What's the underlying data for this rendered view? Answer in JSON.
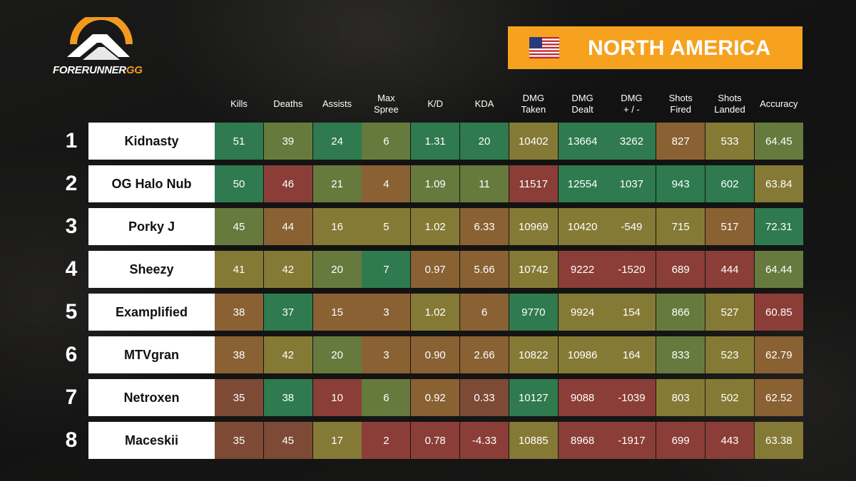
{
  "brand": {
    "logo_text_main": "FORERUNNER",
    "logo_text_suffix": "GG",
    "accent_color": "#f7a21f"
  },
  "region": {
    "title": "NORTH AMERICA",
    "flag_icon": "us-flag-icon"
  },
  "columns": [
    "Kills",
    "Deaths",
    "Assists",
    "Max\nSpree",
    "K/D",
    "KDA",
    "DMG\nTaken",
    "DMG\nDealt",
    "DMG\n+ / -",
    "Shots\nFired",
    "Shots\nLanded",
    "Accuracy"
  ],
  "colors": {
    "green": "#2f7a4f",
    "green_light": "#4d7f47",
    "olive": "#667a3e",
    "yellow": "#857a35",
    "orange": "#8a6133",
    "red": "#8a3e37",
    "red_mid": "#7d4a35"
  },
  "rows": [
    {
      "rank": "1",
      "name": "Kidnasty",
      "values": [
        "51",
        "39",
        "24",
        "6",
        "1.31",
        "20",
        "10402",
        "13664",
        "3262",
        "827",
        "533",
        "64.45"
      ],
      "colors": [
        "green",
        "olive",
        "green",
        "olive",
        "green",
        "green",
        "yellow",
        "green",
        "green",
        "orange",
        "yellow",
        "olive"
      ]
    },
    {
      "rank": "2",
      "name": "OG Halo Nub",
      "values": [
        "50",
        "46",
        "21",
        "4",
        "1.09",
        "11",
        "11517",
        "12554",
        "1037",
        "943",
        "602",
        "63.84"
      ],
      "colors": [
        "green",
        "red",
        "olive",
        "orange",
        "olive",
        "olive",
        "red",
        "green",
        "green",
        "green",
        "green",
        "yellow"
      ]
    },
    {
      "rank": "3",
      "name": "Porky J",
      "values": [
        "45",
        "44",
        "16",
        "5",
        "1.02",
        "6.33",
        "10969",
        "10420",
        "-549",
        "715",
        "517",
        "72.31"
      ],
      "colors": [
        "olive",
        "orange",
        "yellow",
        "yellow",
        "yellow",
        "orange",
        "yellow",
        "yellow",
        "yellow",
        "yellow",
        "orange",
        "green"
      ]
    },
    {
      "rank": "4",
      "name": "Sheezy",
      "values": [
        "41",
        "42",
        "20",
        "7",
        "0.97",
        "5.66",
        "10742",
        "9222",
        "-1520",
        "689",
        "444",
        "64.44"
      ],
      "colors": [
        "yellow",
        "yellow",
        "olive",
        "green",
        "orange",
        "orange",
        "yellow",
        "red",
        "red",
        "red",
        "red",
        "olive"
      ]
    },
    {
      "rank": "5",
      "name": "Examplified",
      "values": [
        "38",
        "37",
        "15",
        "3",
        "1.02",
        "6",
        "9770",
        "9924",
        "154",
        "866",
        "527",
        "60.85"
      ],
      "colors": [
        "orange",
        "green",
        "orange",
        "orange",
        "yellow",
        "orange",
        "green",
        "yellow",
        "yellow",
        "olive",
        "yellow",
        "red"
      ]
    },
    {
      "rank": "6",
      "name": "MTVgran",
      "values": [
        "38",
        "42",
        "20",
        "3",
        "0.90",
        "2.66",
        "10822",
        "10986",
        "164",
        "833",
        "523",
        "62.79"
      ],
      "colors": [
        "orange",
        "yellow",
        "olive",
        "orange",
        "orange",
        "orange",
        "yellow",
        "yellow",
        "yellow",
        "olive",
        "yellow",
        "orange"
      ]
    },
    {
      "rank": "7",
      "name": "Netroxen",
      "values": [
        "35",
        "38",
        "10",
        "6",
        "0.92",
        "0.33",
        "10127",
        "9088",
        "-1039",
        "803",
        "502",
        "62.52"
      ],
      "colors": [
        "red_mid",
        "green",
        "red",
        "olive",
        "orange",
        "red_mid",
        "green",
        "red",
        "red",
        "yellow",
        "yellow",
        "orange"
      ]
    },
    {
      "rank": "8",
      "name": "Maceskii",
      "values": [
        "35",
        "45",
        "17",
        "2",
        "0.78",
        "-4.33",
        "10885",
        "8968",
        "-1917",
        "699",
        "443",
        "63.38"
      ],
      "colors": [
        "red_mid",
        "red_mid",
        "yellow",
        "red",
        "red",
        "red",
        "yellow",
        "red",
        "red",
        "red",
        "red",
        "yellow"
      ]
    }
  ]
}
